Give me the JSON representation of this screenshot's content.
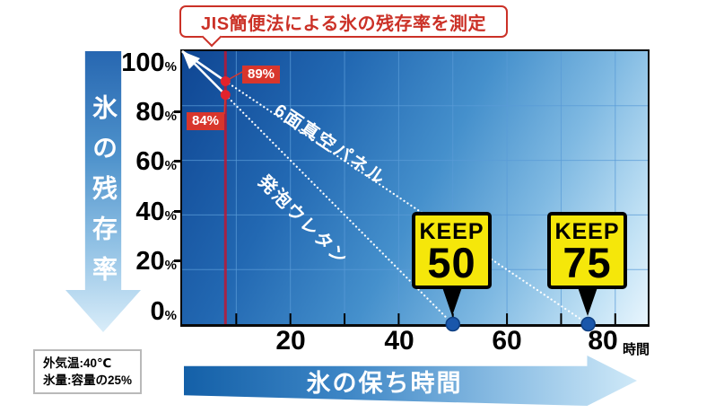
{
  "title": "JIS簡便法による氷の残存率を測定",
  "y_axis": {
    "arrow_label": "氷の残存率",
    "ticks": [
      {
        "value": "100",
        "unit": "%"
      },
      {
        "value": "80",
        "unit": "%"
      },
      {
        "value": "60",
        "unit": "%"
      },
      {
        "value": "40",
        "unit": "%"
      },
      {
        "value": "20",
        "unit": "%"
      },
      {
        "value": "0",
        "unit": "%"
      }
    ]
  },
  "x_axis": {
    "arrow_label": "氷の保ち時間",
    "tick_labels": [
      "20",
      "40",
      "60",
      "80"
    ],
    "unit": "時間"
  },
  "series_labels": {
    "vacuum": "6面真空パネル",
    "urethane": "発泡ウレタン"
  },
  "annotations": {
    "vacuum_value": "89%",
    "urethane_value": "84%",
    "keep50": {
      "top": "KEEP",
      "value": "50"
    },
    "keep75": {
      "top": "KEEP",
      "value": "75"
    }
  },
  "note": {
    "line1": "外気温:40℃",
    "line2": "氷量:容量の25%"
  },
  "colors": {
    "accent_red": "#cb3127",
    "badge_red": "#d8362c",
    "badge_yellow": "#f5e70a",
    "dot_blue": "#1a57ab",
    "plot_dark_blue": "#0f4693",
    "plot_light_blue": "#e8f5fd"
  },
  "chart_data": {
    "type": "line",
    "title": "JIS簡便法による氷の残存率を測定",
    "xlabel": "氷の保ち時間 (時間)",
    "ylabel": "氷の残存率 (%)",
    "xlim": [
      0,
      86
    ],
    "ylim": [
      0,
      100
    ],
    "x_ticks": [
      10,
      20,
      30,
      40,
      50,
      60,
      70,
      80
    ],
    "x_tick_labels": [
      20,
      40,
      60,
      80
    ],
    "y_ticks": [
      0,
      20,
      40,
      60,
      80,
      100
    ],
    "x_grid_step": 10,
    "y_grid_step": 20,
    "grid": true,
    "measurement_hour": 8,
    "series": [
      {
        "name": "6面真空パネル",
        "x": [
          0,
          8,
          75
        ],
        "y": [
          100,
          89,
          0
        ],
        "label_at_measurement": "89%",
        "keep_hours": 75,
        "badge": "KEEP 75"
      },
      {
        "name": "発泡ウレタン",
        "x": [
          0,
          8,
          50
        ],
        "y": [
          100,
          84,
          0
        ],
        "label_at_measurement": "84%",
        "keep_hours": 50,
        "badge": "KEEP 50"
      }
    ],
    "conditions": [
      "外気温:40℃",
      "氷量:容量の25%"
    ]
  }
}
